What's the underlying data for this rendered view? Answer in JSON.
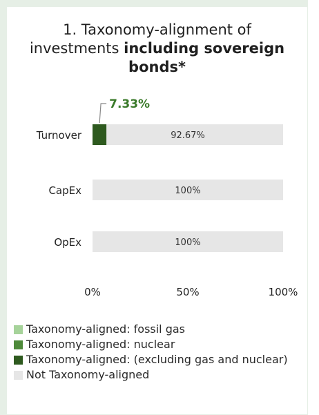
{
  "title": {
    "line1": "1. Taxonomy-alignment of",
    "line2_plain": "investments ",
    "line2_bold": "including sovereign",
    "line3_bold": "bonds*"
  },
  "colors": {
    "fossil_gas": "#a6d39a",
    "nuclear": "#4e8a3a",
    "excluding_gas_nuclear": "#2e5a1f",
    "not_aligned": "#e6e6e6",
    "callout_text": "#3a7a2a"
  },
  "chart_data": {
    "type": "bar",
    "orientation": "horizontal",
    "stacked": true,
    "categories": [
      "Turnover",
      "CapEx",
      "OpEx"
    ],
    "series": [
      {
        "name": "Taxonomy-aligned: fossil gas",
        "values": [
          0,
          0,
          0
        ]
      },
      {
        "name": "Taxonomy-aligned: nuclear",
        "values": [
          0,
          0,
          0
        ]
      },
      {
        "name": "Taxonomy-aligned: (excluding gas and nuclear)",
        "values": [
          7.33,
          0,
          0
        ]
      },
      {
        "name": "Not Taxonomy-aligned",
        "values": [
          92.67,
          100,
          100
        ]
      }
    ],
    "data_labels": {
      "aligned": [
        "7.33%",
        "",
        ""
      ],
      "not_aligned": [
        "92.67%",
        "100%",
        "100%"
      ]
    },
    "xlim": [
      0,
      100
    ],
    "x_ticks": [
      "0%",
      "50%",
      "100%"
    ],
    "grid": false,
    "legend_position": "bottom"
  }
}
